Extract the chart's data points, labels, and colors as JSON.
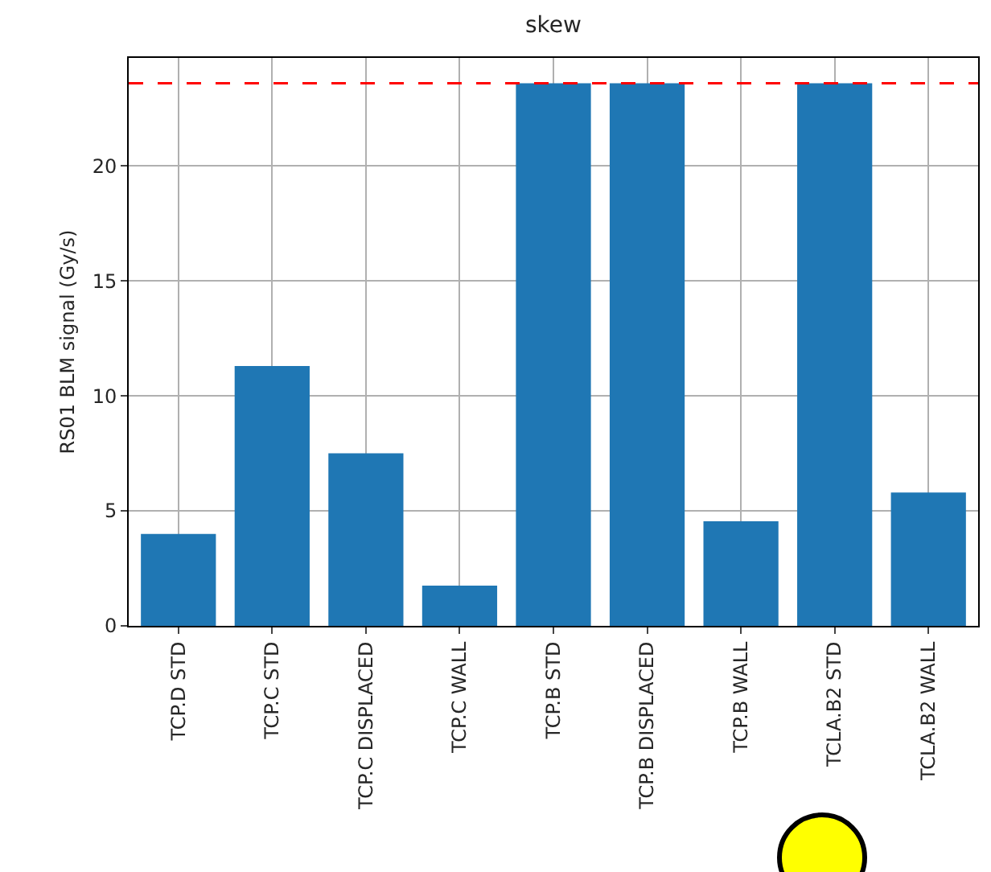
{
  "chart_data": {
    "type": "bar",
    "title": "skew",
    "ylabel": "RS01 BLM signal (Gy/s)",
    "categories": [
      "TCP.D STD",
      "TCP.C STD",
      "TCP.C DISPLACED",
      "TCP.C WALL",
      "TCP.B STD",
      "TCP.B DISPLACED",
      "TCP.B WALL",
      "TCLA.B2 STD",
      "TCLA.B2 WALL"
    ],
    "values": [
      4.0,
      11.3,
      7.5,
      1.75,
      23.6,
      23.6,
      4.55,
      23.6,
      5.8
    ],
    "color": "#1f77b4",
    "ylim": [
      0,
      24.7
    ],
    "yticks": [
      0,
      5,
      10,
      15,
      20
    ],
    "grid": true,
    "ref_lines": [
      {
        "axis": "y",
        "value": 23.6,
        "color": "#ff0000",
        "line_style": "dashed"
      }
    ]
  }
}
